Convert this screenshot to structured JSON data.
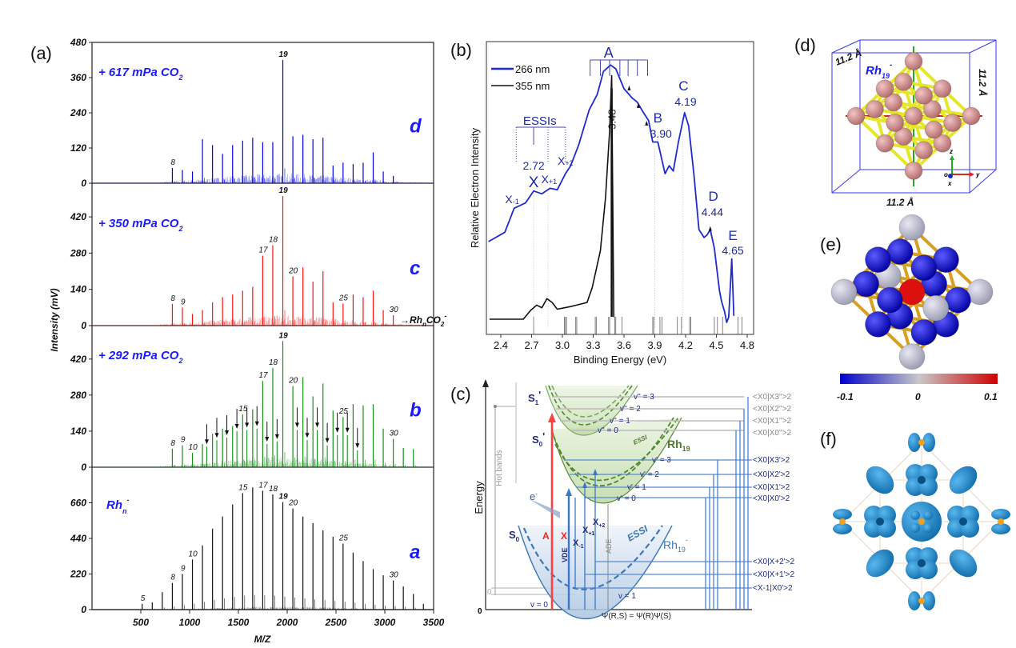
{
  "panel_labels": {
    "a": "(a)",
    "b": "(b)",
    "c": "(c)",
    "d": "(d)",
    "e": "(e)",
    "f": "(f)"
  },
  "chart_data": [
    {
      "panel": "a",
      "type": "bar",
      "xlabel": "M/Z",
      "ylabel": "Intensity (mV)",
      "xlim": [
        0,
        3500
      ],
      "xticks": [
        500,
        1000,
        1500,
        2000,
        2500,
        3000,
        3500
      ],
      "adduct_label": {
        "arrow": "→",
        "text": "Rh",
        "sub": "n",
        "text2": "CO",
        "sub2": "2",
        "sup": "-"
      },
      "traces": [
        {
          "id": "d",
          "letter": "d",
          "color": "#0000ee",
          "condition": {
            "text": "+ 617 mPa CO",
            "sub": "2"
          },
          "ylim": [
            0,
            480
          ],
          "yticks": [
            0,
            120,
            240,
            360,
            480
          ],
          "cluster_size": [
            8,
            9,
            10,
            11,
            12,
            13,
            14,
            15,
            16,
            17,
            18,
            19,
            20,
            21,
            22,
            23,
            24,
            25,
            26,
            27,
            28,
            29,
            30
          ],
          "values": [
            52,
            45,
            40,
            150,
            130,
            100,
            130,
            145,
            155,
            140,
            140,
            420,
            160,
            165,
            150,
            155,
            60,
            70,
            65,
            70,
            105,
            40,
            25
          ],
          "labels": [
            8,
            19
          ]
        },
        {
          "id": "c",
          "letter": "c",
          "color": "#ff1111",
          "condition": {
            "text": "+ 350 mPa CO",
            "sub": "2"
          },
          "ylim": [
            0,
            550
          ],
          "yticks": [
            0,
            140,
            280,
            420
          ],
          "cluster_size": [
            8,
            9,
            10,
            11,
            12,
            13,
            14,
            15,
            16,
            17,
            18,
            19,
            20,
            21,
            22,
            23,
            24,
            25,
            26,
            27,
            28,
            29,
            30
          ],
          "values": [
            84,
            70,
            45,
            60,
            90,
            110,
            120,
            135,
            150,
            270,
            310,
            500,
            190,
            225,
            170,
            210,
            90,
            85,
            120,
            110,
            135,
            60,
            40
          ],
          "labels": [
            8,
            9,
            17,
            18,
            19,
            20,
            25,
            30
          ]
        },
        {
          "id": "b",
          "letter": "b",
          "color": "#17901a",
          "condition": {
            "text": "+ 292 mPa CO",
            "sub": "2"
          },
          "ylim": [
            0,
            550
          ],
          "yticks": [
            0,
            140,
            280,
            420
          ],
          "cluster_size": [
            8,
            9,
            10,
            11,
            12,
            13,
            14,
            15,
            16,
            17,
            18,
            19,
            20,
            21,
            22,
            23,
            24,
            25,
            26,
            27,
            28,
            29,
            30,
            31,
            32
          ],
          "values": [
            72,
            85,
            56,
            90,
            130,
            150,
            160,
            205,
            225,
            335,
            385,
            490,
            315,
            350,
            275,
            325,
            220,
            195,
            245,
            240,
            245,
            150,
            110,
            75,
            70
          ],
          "adduct_cluster_size": [
            11,
            12,
            13,
            14,
            15,
            16,
            17,
            18,
            20,
            21,
            22,
            23,
            24,
            25,
            26
          ],
          "adduct_values": [
            80,
            105,
            115,
            140,
            145,
            150,
            90,
            100,
            145,
            105,
            145,
            85,
            125,
            125,
            65
          ],
          "labels": [
            8,
            9,
            10,
            15,
            17,
            18,
            19,
            20,
            25,
            30
          ]
        },
        {
          "id": "a",
          "letter": "a",
          "color": "#111111",
          "condition": {
            "text": "Rh",
            "sub": "n",
            "sup": "-"
          },
          "ylim": [
            0,
            880
          ],
          "yticks": [
            0,
            220,
            440,
            660
          ],
          "cluster_size": [
            5,
            6,
            7,
            8,
            9,
            10,
            11,
            12,
            13,
            14,
            15,
            16,
            17,
            18,
            19,
            20,
            21,
            22,
            23,
            24,
            25,
            26,
            27,
            28,
            29,
            30,
            31,
            32,
            33
          ],
          "values": [
            35,
            45,
            108,
            165,
            220,
            310,
            397,
            500,
            575,
            650,
            720,
            755,
            735,
            712,
            665,
            625,
            575,
            535,
            490,
            450,
            408,
            352,
            300,
            250,
            212,
            180,
            143,
            97,
            35
          ],
          "labels": [
            5,
            8,
            9,
            10,
            15,
            17,
            18,
            19,
            20,
            25,
            30
          ]
        }
      ]
    },
    {
      "panel": "b",
      "type": "line",
      "xlabel": "Binding Energy (eV)",
      "ylabel": "Relative Electron Intensity",
      "xlim": [
        2.26,
        4.83
      ],
      "xticks": [
        "2.4",
        "2.7",
        "3.0",
        "3.3",
        "3.6",
        "3.9",
        "4.2",
        "4.5",
        "4.8"
      ],
      "legend_placement": "top-left",
      "series": [
        {
          "name": "266 nm",
          "color": "#1f2ad0",
          "x": [
            2.28,
            2.44,
            2.53,
            2.64,
            2.72,
            2.8,
            2.88,
            2.95,
            3.03,
            3.08,
            3.16,
            3.26,
            3.34,
            3.4,
            3.47,
            3.52,
            3.6,
            3.68,
            3.73,
            3.79,
            3.84,
            3.88,
            3.93,
            4.0,
            4.04,
            4.08,
            4.13,
            4.19,
            4.23,
            4.28,
            4.33,
            4.38,
            4.41,
            4.44,
            4.48,
            4.53,
            4.55,
            4.58,
            4.6,
            4.62,
            4.65,
            4.67
          ],
          "y": [
            0.317,
            0.349,
            0.431,
            0.449,
            0.49,
            0.48,
            0.499,
            0.494,
            0.549,
            0.576,
            0.648,
            0.766,
            0.82,
            0.898,
            0.92,
            0.907,
            0.839,
            0.807,
            0.793,
            0.757,
            0.73,
            0.657,
            0.657,
            0.549,
            0.576,
            0.558,
            0.657,
            0.757,
            0.712,
            0.549,
            0.358,
            0.331,
            0.34,
            0.358,
            0.295,
            0.15,
            0.113,
            0.077,
            0.041,
            0.059,
            0.258,
            0.063
          ]
        },
        {
          "name": "355 nm",
          "color": "#111111",
          "x": [
            2.29,
            2.62,
            2.69,
            2.75,
            2.8,
            2.85,
            2.9,
            2.95,
            3.08,
            3.24,
            3.29,
            3.37,
            3.42,
            3.46,
            3.48,
            3.5
          ],
          "y": [
            0.052,
            0.052,
            0.082,
            0.1,
            0.091,
            0.122,
            0.109,
            0.086,
            0.095,
            0.109,
            0.159,
            0.286,
            0.467,
            0.694,
            0.884,
            0.059
          ]
        }
      ],
      "vertical_peak": {
        "x": 3.48,
        "y": 0.84,
        "label": "3.48"
      },
      "calculated_transitions": [
        2.72,
        3.02,
        3.03,
        3.04,
        3.13,
        3.14,
        3.32,
        3.33,
        3.45,
        3.46,
        3.51,
        3.52,
        3.58,
        3.88,
        3.89,
        3.95,
        3.97,
        4.12,
        4.16,
        4.24,
        4.25,
        4.48,
        4.51,
        4.56,
        4.71,
        4.75
      ],
      "annotations": {
        "A": "A",
        "ESSIs": "ESSIs",
        "X": "X",
        "x_minus1": "X-1",
        "x_plus1": "X+1",
        "x_plus2": "X+2",
        "val_272": "2.72",
        "B": "B",
        "val_390": "3.90",
        "C": "C",
        "val_419": "4.19",
        "D": "D",
        "val_444": "4.44",
        "E": "E",
        "val_465": "4.65"
      },
      "a_comb_x": [
        3.27,
        3.37,
        3.46,
        3.56,
        3.64,
        3.73,
        3.83
      ],
      "essi_comb_x": [
        2.55,
        2.72,
        2.86,
        3.03
      ]
    }
  ],
  "panel_c": {
    "axis_label": "Energy",
    "hot_bands": "Hot bands",
    "zero": "0",
    "zero2": "0",
    "S1p": "S",
    "S1p_sub": "1",
    "S1p_prime": "'",
    "S0p": "S",
    "S0p_sub": "0",
    "S0p_prime": "'",
    "S0": "S",
    "S0_sub": "0",
    "Rh19": "Rh",
    "Rh19_sub": "19",
    "Rh19m": "Rh",
    "Rh19m_sub": "19",
    "Rh19m_sup": "-",
    "essi_green": "ESSI",
    "essi_blue": "ESSI",
    "electron": "e",
    "electron_sup": "-",
    "A": "A",
    "X": "X",
    "VDE": "VDE",
    "ADE": "ADE",
    "xm1": "X",
    "xm1_sub": "-1",
    "xp1": "X",
    "xp1_sub": "+1",
    "xp2": "X",
    "xp2_sub": "+2",
    "v0": "v = 0",
    "v1": "v = 1",
    "vpp": [
      "v'' = 3",
      "v'' = 2",
      "v'' = 1",
      "v'' = 0"
    ],
    "vp": [
      "v' = 3",
      "v' = 2",
      "v' = 1",
      "v' = 0"
    ],
    "franck_condon_upper": [
      "<X0|X3''>2",
      "<X0|X2''>2",
      "<X0|X1''>2",
      "<X0|X0''>2"
    ],
    "franck_condon_mid": [
      "<X0|X3'>2",
      "<X0|X2'>2",
      "<X0|X1'>2",
      "<X0|X0'>2"
    ],
    "franck_condon_low": [
      "<X0|X+2'>2",
      "<X0|X+1'>2",
      "<X-1|X0'>2"
    ],
    "formula": "Ψ(R,S) = Ψ(R)Ψ(S)"
  },
  "panel_d": {
    "dim_top": "11.2 Å",
    "dim_right": "11.2 Å",
    "dim_bottom": "11.2 Å",
    "label": "Rh",
    "label_sub": "19",
    "label_sup": "-",
    "axes": {
      "z": "z",
      "y": "y",
      "x": "x",
      "o": "o"
    },
    "atom_color": "#c98282",
    "bond_color": "#e6e62a",
    "box_color": "#3a3aee"
  },
  "panel_e": {
    "colorbar": {
      "min_label": "-0.1",
      "mid_label": "0",
      "max_label": "0.1",
      "min_color": "#0000cc",
      "mid_color": "#c8c8c8",
      "max_color": "#d00000"
    },
    "bond_color": "#d9a020"
  },
  "panel_f": {
    "lobe_color": "#1f8fd0",
    "atom_color": "#f0a020"
  }
}
